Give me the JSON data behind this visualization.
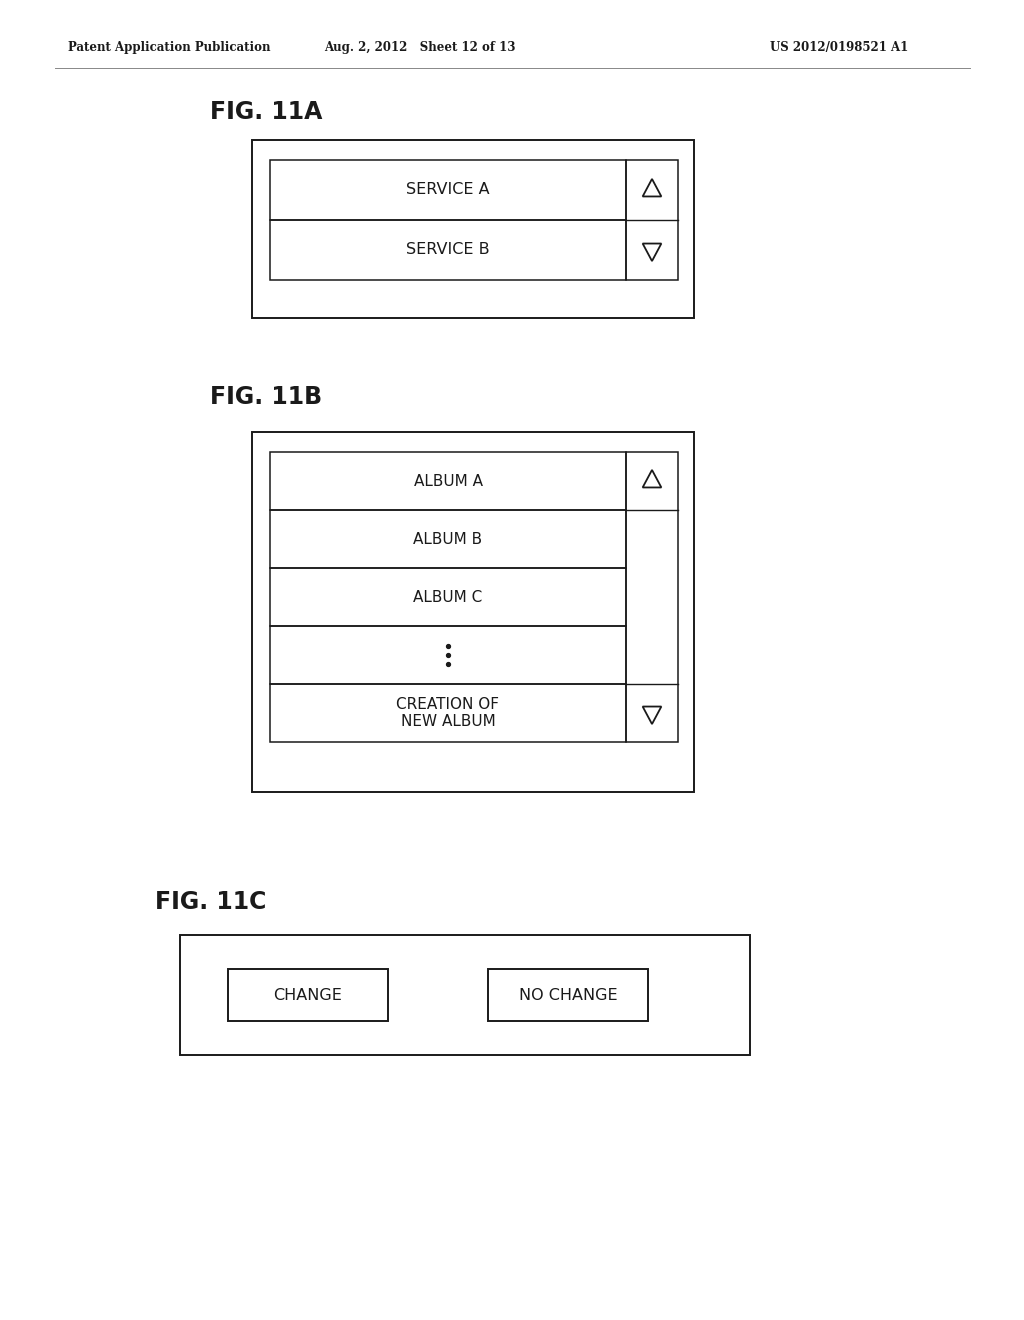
{
  "header_left": "Patent Application Publication",
  "header_mid": "Aug. 2, 2012   Sheet 12 of 13",
  "header_right": "US 2012/0198521 A1",
  "fig11a_label": "FIG. 11A",
  "fig11b_label": "FIG. 11B",
  "fig11c_label": "FIG. 11C",
  "fig11a_items": [
    "SERVICE A",
    "SERVICE B"
  ],
  "fig11b_items": [
    "ALBUM A",
    "ALBUM B",
    "ALBUM C",
    "...",
    "CREATION OF\nNEW ALBUM"
  ],
  "fig11c_items": [
    "CHANGE",
    "NO CHANGE"
  ],
  "bg_color": "#ffffff",
  "line_color": "#1a1a1a",
  "text_color": "#1a1a1a",
  "header_line_color": "#555555"
}
